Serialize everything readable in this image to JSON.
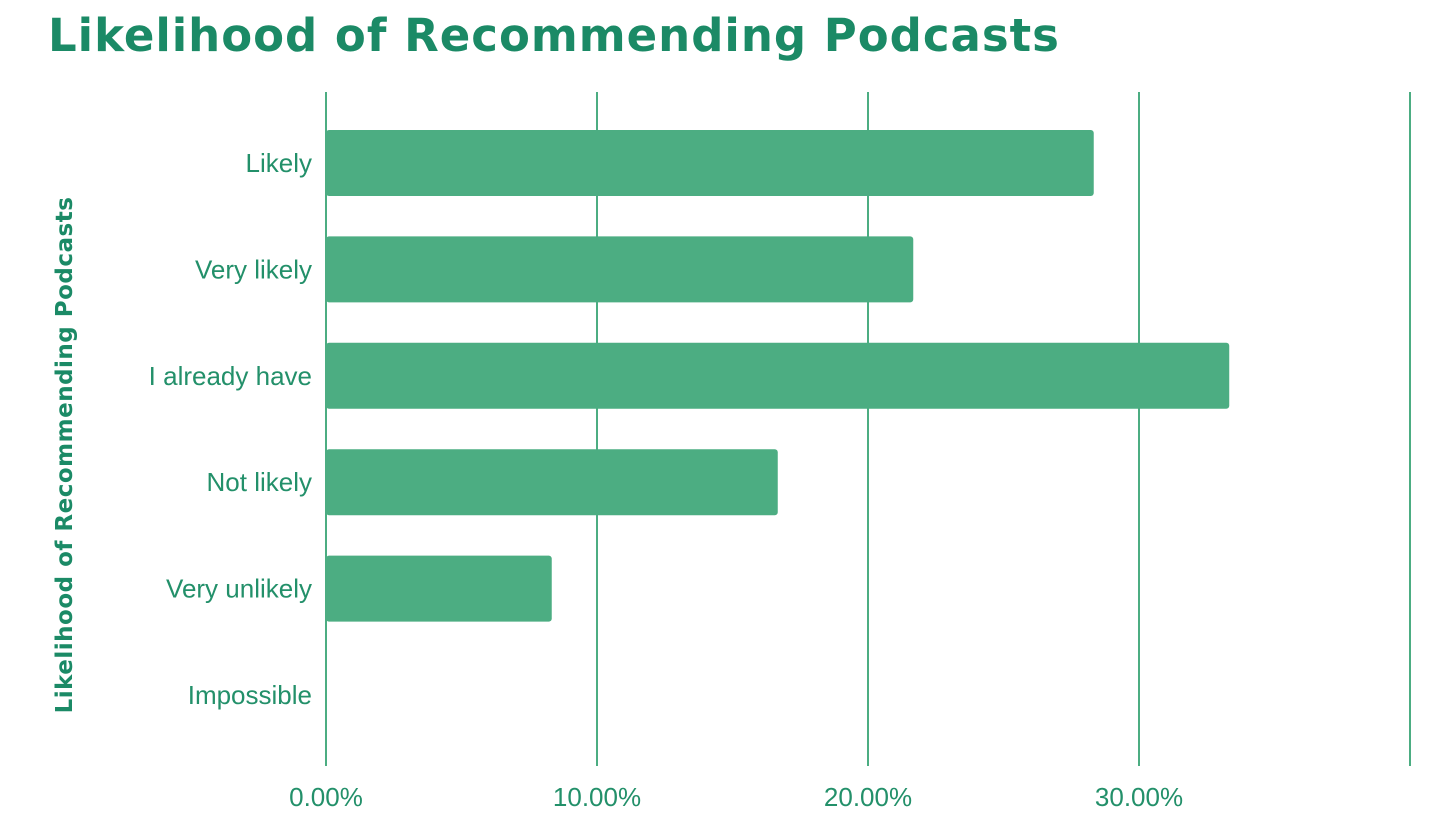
{
  "chart_data": {
    "type": "bar",
    "orientation": "horizontal",
    "title": "Likelihood of Recommending Podcasts",
    "ylabel": "Likelihood of Recommending Podcasts",
    "xlabel": "",
    "categories": [
      "Likely",
      "Very likely",
      "I already have",
      "Not likely",
      "Very unlikely",
      "Impossible"
    ],
    "values": [
      28.33,
      21.67,
      33.33,
      16.67,
      8.33,
      0
    ],
    "xlim": [
      0,
      40
    ],
    "x_ticks": [
      0,
      10,
      20,
      30,
      40
    ],
    "x_tick_labels": [
      "0.00%",
      "10.00%",
      "20.00%",
      "30.00%",
      ""
    ],
    "grid": true,
    "colors": {
      "bar": "#4cad82",
      "text": "#23906a",
      "title": "#1b8a66",
      "grid": "#4cad82"
    }
  }
}
